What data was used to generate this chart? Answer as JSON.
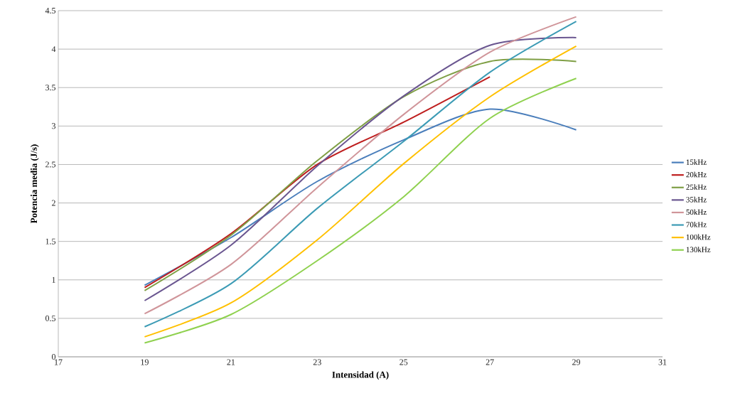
{
  "chart_data": {
    "type": "line",
    "xlabel": "Intensidad (A)",
    "ylabel": "Potencia media (J/s)",
    "x": [
      19,
      21,
      23,
      25,
      27,
      29
    ],
    "xlim": [
      17,
      31
    ],
    "xticks": [
      17,
      19,
      21,
      23,
      25,
      27,
      29,
      31
    ],
    "ylim": [
      0,
      4.5
    ],
    "yticks": [
      0,
      0.5,
      1,
      1.5,
      2,
      2.5,
      3,
      3.5,
      4,
      4.5
    ],
    "grid": "y",
    "legend": "right",
    "marker": "none",
    "line_style": "solid",
    "series": [
      {
        "name": "15kHz",
        "color": "#4a7ebb",
        "values": [
          0.93,
          1.55,
          2.28,
          2.82,
          3.22,
          2.95
        ]
      },
      {
        "name": "20kHz",
        "color": "#be1e1e",
        "values": [
          0.9,
          1.6,
          2.5,
          3.05,
          3.64,
          null
        ]
      },
      {
        "name": "25kHz",
        "color": "#7f9f45",
        "values": [
          0.86,
          1.58,
          2.55,
          3.38,
          3.84,
          3.84
        ]
      },
      {
        "name": "35kHz",
        "color": "#6a5690",
        "values": [
          0.73,
          1.45,
          2.48,
          3.39,
          4.05,
          4.15
        ]
      },
      {
        "name": "50kHz",
        "color": "#d0959a",
        "values": [
          0.56,
          1.2,
          2.2,
          3.15,
          3.96,
          4.42
        ]
      },
      {
        "name": "70kHz",
        "color": "#3c9bb5",
        "values": [
          0.39,
          0.95,
          1.93,
          2.8,
          3.7,
          4.36
        ]
      },
      {
        "name": "100kHz",
        "color": "#ffc000",
        "values": [
          0.26,
          0.7,
          1.52,
          2.51,
          3.38,
          4.04
        ]
      },
      {
        "name": "130kHz",
        "color": "#8fd14f",
        "values": [
          0.18,
          0.55,
          1.25,
          2.08,
          3.1,
          3.62
        ]
      }
    ]
  }
}
